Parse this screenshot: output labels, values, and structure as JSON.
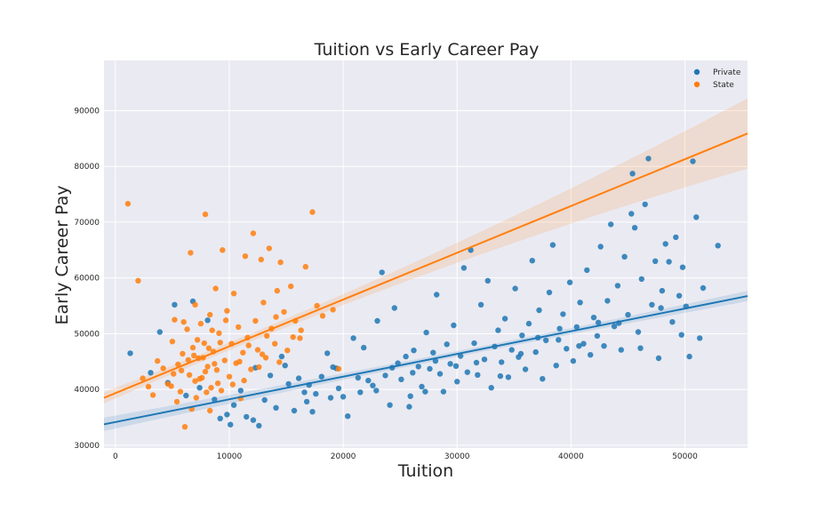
{
  "chart_data": {
    "type": "scatter",
    "title": "Tuition vs Early Career Pay",
    "xlabel": "Tuition",
    "ylabel": "Early Career Pay",
    "xlim": [
      -1000,
      55500
    ],
    "ylim": [
      29500,
      99000
    ],
    "x_ticks": [
      0,
      10000,
      20000,
      30000,
      40000,
      50000
    ],
    "y_ticks": [
      30000,
      40000,
      50000,
      60000,
      70000,
      80000,
      90000
    ],
    "grid": true,
    "legend_position": "top-right",
    "series": [
      {
        "name": "Private",
        "color": "#1f77b4",
        "points": [
          [
            1300,
            46500
          ],
          [
            3900,
            50300
          ],
          [
            5200,
            55200
          ],
          [
            6800,
            55800
          ],
          [
            8100,
            52400
          ],
          [
            9200,
            34800
          ],
          [
            9800,
            35500
          ],
          [
            10100,
            33700
          ],
          [
            10400,
            37200
          ],
          [
            11000,
            39800
          ],
          [
            11500,
            35100
          ],
          [
            12100,
            34500
          ],
          [
            12600,
            33500
          ],
          [
            13100,
            38100
          ],
          [
            13600,
            42500
          ],
          [
            14100,
            36700
          ],
          [
            14600,
            45900
          ],
          [
            15200,
            41000
          ],
          [
            15700,
            36200
          ],
          [
            16100,
            42000
          ],
          [
            16600,
            39500
          ],
          [
            17000,
            40800
          ],
          [
            17600,
            39200
          ],
          [
            18100,
            42300
          ],
          [
            18600,
            46500
          ],
          [
            19100,
            44000
          ],
          [
            19600,
            40200
          ],
          [
            20000,
            38700
          ],
          [
            20400,
            35200
          ],
          [
            20900,
            49200
          ],
          [
            21300,
            42100
          ],
          [
            21800,
            47500
          ],
          [
            22200,
            41600
          ],
          [
            22600,
            40700
          ],
          [
            23000,
            52300
          ],
          [
            23400,
            61000
          ],
          [
            23700,
            42500
          ],
          [
            24100,
            37200
          ],
          [
            24500,
            54600
          ],
          [
            24800,
            44700
          ],
          [
            25100,
            41800
          ],
          [
            25500,
            45900
          ],
          [
            25900,
            38800
          ],
          [
            26200,
            47000
          ],
          [
            26600,
            44100
          ],
          [
            26900,
            40500
          ],
          [
            27300,
            50200
          ],
          [
            27600,
            43700
          ],
          [
            27900,
            46600
          ],
          [
            28200,
            57000
          ],
          [
            28500,
            42800
          ],
          [
            28800,
            39600
          ],
          [
            29100,
            48100
          ],
          [
            29400,
            44600
          ],
          [
            29700,
            51500
          ],
          [
            30000,
            41400
          ],
          [
            30300,
            46000
          ],
          [
            30600,
            61800
          ],
          [
            30900,
            43100
          ],
          [
            31200,
            65000
          ],
          [
            31500,
            48300
          ],
          [
            31800,
            42600
          ],
          [
            32100,
            55200
          ],
          [
            32400,
            45400
          ],
          [
            32700,
            59500
          ],
          [
            33000,
            40300
          ],
          [
            33300,
            47700
          ],
          [
            33600,
            50600
          ],
          [
            33900,
            44900
          ],
          [
            34200,
            52700
          ],
          [
            34500,
            42200
          ],
          [
            34800,
            47100
          ],
          [
            35100,
            58100
          ],
          [
            35400,
            45800
          ],
          [
            35700,
            49700
          ],
          [
            36000,
            43600
          ],
          [
            36300,
            51800
          ],
          [
            36600,
            63100
          ],
          [
            36900,
            46700
          ],
          [
            37200,
            54200
          ],
          [
            37500,
            41900
          ],
          [
            37800,
            48800
          ],
          [
            38100,
            57400
          ],
          [
            38400,
            65900
          ],
          [
            38700,
            44300
          ],
          [
            39000,
            50900
          ],
          [
            39300,
            53500
          ],
          [
            39600,
            47300
          ],
          [
            39900,
            59200
          ],
          [
            40200,
            45100
          ],
          [
            40500,
            51200
          ],
          [
            40800,
            55600
          ],
          [
            41100,
            48200
          ],
          [
            41400,
            61400
          ],
          [
            41700,
            46200
          ],
          [
            42000,
            52900
          ],
          [
            42300,
            49600
          ],
          [
            42600,
            65600
          ],
          [
            42900,
            47800
          ],
          [
            43200,
            55900
          ],
          [
            43500,
            69600
          ],
          [
            43800,
            51300
          ],
          [
            44100,
            58600
          ],
          [
            44400,
            47100
          ],
          [
            44700,
            63800
          ],
          [
            45000,
            53400
          ],
          [
            45300,
            71500
          ],
          [
            45600,
            69000
          ],
          [
            45900,
            50300
          ],
          [
            46200,
            59800
          ],
          [
            46500,
            73200
          ],
          [
            46800,
            81400
          ],
          [
            47100,
            55200
          ],
          [
            47400,
            63000
          ],
          [
            47700,
            45600
          ],
          [
            48000,
            57700
          ],
          [
            48300,
            66100
          ],
          [
            48600,
            62900
          ],
          [
            48900,
            52100
          ],
          [
            49200,
            67300
          ],
          [
            49500,
            56800
          ],
          [
            49800,
            61900
          ],
          [
            50100,
            54900
          ],
          [
            50400,
            45900
          ],
          [
            50700,
            80900
          ],
          [
            51000,
            70900
          ],
          [
            51300,
            49200
          ],
          [
            51600,
            58200
          ],
          [
            52900,
            65800
          ],
          [
            45400,
            78700
          ],
          [
            3100,
            43000
          ],
          [
            4600,
            41200
          ],
          [
            6200,
            38900
          ],
          [
            7400,
            40300
          ],
          [
            8700,
            38200
          ],
          [
            14900,
            44300
          ],
          [
            16800,
            37800
          ],
          [
            19400,
            43800
          ],
          [
            21500,
            39500
          ],
          [
            24300,
            43900
          ],
          [
            26100,
            43000
          ],
          [
            28100,
            45100
          ],
          [
            29900,
            44200
          ],
          [
            31700,
            44800
          ],
          [
            33800,
            42400
          ],
          [
            35600,
            46400
          ],
          [
            37100,
            49300
          ],
          [
            38900,
            48900
          ],
          [
            40700,
            47800
          ],
          [
            42400,
            52000
          ],
          [
            44200,
            51900
          ],
          [
            46100,
            47400
          ],
          [
            47900,
            54600
          ],
          [
            49700,
            49800
          ],
          [
            27200,
            39600
          ],
          [
            22900,
            39800
          ],
          [
            25800,
            36900
          ],
          [
            18900,
            38500
          ],
          [
            12300,
            43900
          ],
          [
            17300,
            36000
          ]
        ],
        "regression": {
          "x": [
            -1000,
            55500
          ],
          "y": [
            33750,
            56750
          ]
        }
      },
      {
        "name": "State",
        "color": "#ff7f0e",
        "points": [
          [
            1100,
            73300
          ],
          [
            2000,
            59500
          ],
          [
            2400,
            42000
          ],
          [
            2900,
            40500
          ],
          [
            3300,
            39000
          ],
          [
            3700,
            45100
          ],
          [
            4200,
            43800
          ],
          [
            4600,
            41000
          ],
          [
            5000,
            48600
          ],
          [
            5200,
            52500
          ],
          [
            5500,
            44500
          ],
          [
            5700,
            39600
          ],
          [
            5900,
            46400
          ],
          [
            6100,
            33300
          ],
          [
            6300,
            50800
          ],
          [
            6500,
            42600
          ],
          [
            6600,
            64500
          ],
          [
            6800,
            47500
          ],
          [
            7000,
            55200
          ],
          [
            7100,
            38500
          ],
          [
            7300,
            45600
          ],
          [
            7500,
            51800
          ],
          [
            7600,
            42100
          ],
          [
            7800,
            48300
          ],
          [
            7900,
            71400
          ],
          [
            8100,
            44100
          ],
          [
            8300,
            53400
          ],
          [
            8400,
            40300
          ],
          [
            8600,
            46800
          ],
          [
            8800,
            58100
          ],
          [
            8900,
            43500
          ],
          [
            9100,
            50100
          ],
          [
            9300,
            39800
          ],
          [
            9400,
            65000
          ],
          [
            9600,
            45200
          ],
          [
            9800,
            54100
          ],
          [
            10000,
            42300
          ],
          [
            10200,
            48200
          ],
          [
            10400,
            57200
          ],
          [
            10600,
            44700
          ],
          [
            10800,
            51200
          ],
          [
            11000,
            38400
          ],
          [
            11200,
            46600
          ],
          [
            11400,
            63900
          ],
          [
            11600,
            49300
          ],
          [
            11900,
            43600
          ],
          [
            12100,
            68000
          ],
          [
            12300,
            52300
          ],
          [
            12500,
            47100
          ],
          [
            12800,
            63300
          ],
          [
            13000,
            55600
          ],
          [
            13200,
            45700
          ],
          [
            13500,
            65300
          ],
          [
            13700,
            50900
          ],
          [
            14000,
            48200
          ],
          [
            14200,
            57700
          ],
          [
            14500,
            62800
          ],
          [
            14800,
            53900
          ],
          [
            15100,
            47000
          ],
          [
            15400,
            58500
          ],
          [
            15800,
            52300
          ],
          [
            16200,
            49200
          ],
          [
            16700,
            62000
          ],
          [
            17300,
            71800
          ],
          [
            17700,
            55000
          ],
          [
            18200,
            53200
          ],
          [
            19100,
            54300
          ],
          [
            19600,
            43700
          ],
          [
            5400,
            37800
          ],
          [
            6700,
            36500
          ],
          [
            7400,
            41900
          ],
          [
            7900,
            43200
          ],
          [
            8200,
            47400
          ],
          [
            8700,
            44600
          ],
          [
            9000,
            41100
          ],
          [
            6400,
            45300
          ],
          [
            7200,
            48900
          ],
          [
            8500,
            50600
          ],
          [
            9700,
            52400
          ],
          [
            10900,
            45000
          ],
          [
            11300,
            41600
          ],
          [
            12600,
            44000
          ],
          [
            13300,
            49600
          ],
          [
            14100,
            53000
          ],
          [
            15600,
            49400
          ],
          [
            4900,
            40600
          ],
          [
            5800,
            43400
          ],
          [
            6900,
            46100
          ],
          [
            7700,
            45700
          ],
          [
            8000,
            39500
          ],
          [
            9200,
            48400
          ],
          [
            10300,
            40900
          ],
          [
            11700,
            47900
          ],
          [
            12900,
            46300
          ],
          [
            14400,
            44900
          ],
          [
            16300,
            50600
          ],
          [
            5100,
            42800
          ],
          [
            6000,
            52100
          ],
          [
            7000,
            41500
          ],
          [
            8300,
            36200
          ]
        ],
        "regression": {
          "x": [
            -1000,
            55500
          ],
          "y": [
            38500,
            85900
          ]
        }
      }
    ]
  }
}
